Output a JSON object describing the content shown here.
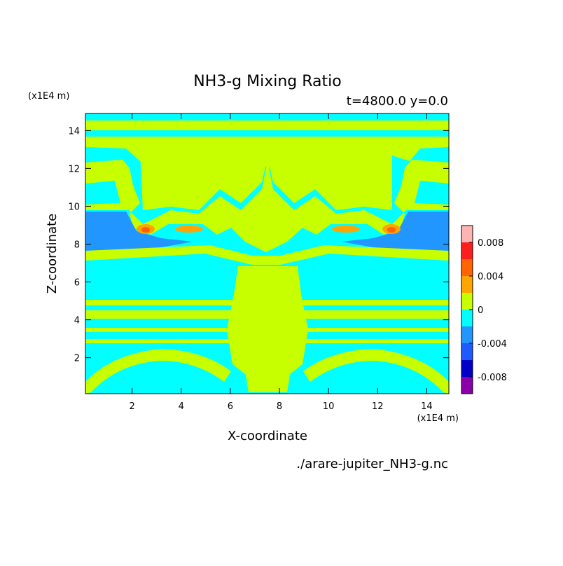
{
  "chart_data": {
    "type": "contour",
    "title": "NH3-g Mixing Ratio",
    "subtitle": "t=4800.0 y=0.0",
    "x_label": "X-coordinate",
    "y_label": "Z-coordinate",
    "x_unit": "(x1E4 m)",
    "y_unit": "(x1E4 m)",
    "source": "./arare-jupiter_NH3-g.nc",
    "xlim": [
      0.1,
      14.9
    ],
    "ylim": [
      0.1,
      14.9
    ],
    "xticks": [
      2,
      4,
      6,
      8,
      10,
      12,
      14
    ],
    "yticks": [
      2,
      4,
      6,
      8,
      10,
      12,
      14
    ],
    "colorbar": {
      "levels": [
        -0.01,
        -0.008,
        -0.006,
        -0.004,
        -0.002,
        0,
        0.002,
        0.004,
        0.006,
        0.008,
        0.01
      ],
      "colors": [
        "#8a00a8",
        "#0000c8",
        "#1e5aff",
        "#2196ff",
        "#00ffff",
        "#c8ff00",
        "#ffa500",
        "#ff6400",
        "#ff1e1e",
        "#ffb4b4"
      ],
      "ticks": [
        -0.008,
        -0.004,
        0,
        0.004,
        0.008
      ]
    }
  }
}
